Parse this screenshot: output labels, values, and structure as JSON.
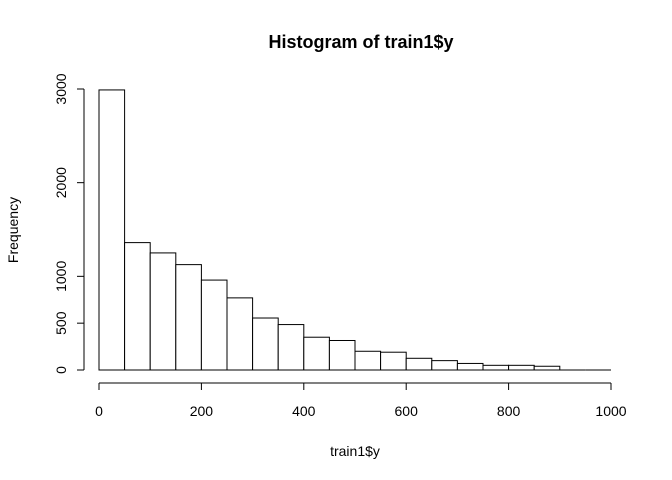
{
  "chart_data": {
    "type": "bar",
    "title": "Histogram of train1$y",
    "xlabel": "train1$y",
    "ylabel": "Frequency",
    "bin_width": 50,
    "bins": [
      {
        "start": 0,
        "end": 50,
        "count": 2990
      },
      {
        "start": 50,
        "end": 100,
        "count": 1360
      },
      {
        "start": 100,
        "end": 150,
        "count": 1250
      },
      {
        "start": 150,
        "end": 200,
        "count": 1125
      },
      {
        "start": 200,
        "end": 250,
        "count": 960
      },
      {
        "start": 250,
        "end": 300,
        "count": 770
      },
      {
        "start": 300,
        "end": 350,
        "count": 555
      },
      {
        "start": 350,
        "end": 400,
        "count": 485
      },
      {
        "start": 400,
        "end": 450,
        "count": 350
      },
      {
        "start": 450,
        "end": 500,
        "count": 315
      },
      {
        "start": 500,
        "end": 550,
        "count": 200
      },
      {
        "start": 550,
        "end": 600,
        "count": 190
      },
      {
        "start": 600,
        "end": 650,
        "count": 125
      },
      {
        "start": 650,
        "end": 700,
        "count": 100
      },
      {
        "start": 700,
        "end": 750,
        "count": 70
      },
      {
        "start": 750,
        "end": 800,
        "count": 50
      },
      {
        "start": 800,
        "end": 850,
        "count": 50
      },
      {
        "start": 850,
        "end": 900,
        "count": 40
      },
      {
        "start": 900,
        "end": 950,
        "count": 0
      },
      {
        "start": 950,
        "end": 1000,
        "count": 0
      }
    ],
    "xlim": [
      0,
      1000
    ],
    "ylim": [
      0,
      3000
    ],
    "x_ticks": [
      0,
      200,
      400,
      600,
      800,
      1000
    ],
    "y_ticks": [
      0,
      500,
      1000,
      2000,
      3000
    ],
    "grid": false,
    "legend": "none"
  }
}
